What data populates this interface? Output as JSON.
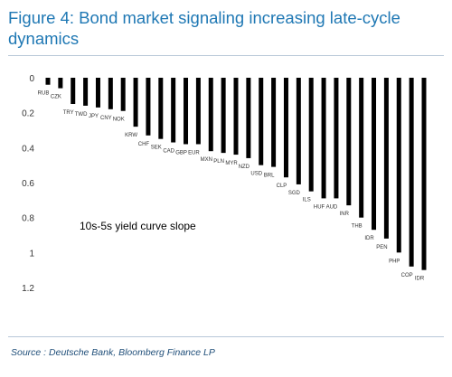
{
  "title": "Figure 4: Bond market signaling increasing late-cycle dynamics",
  "source": "Source : Deutsche Bank, Bloomberg Finance LP",
  "chart_data": {
    "type": "bar",
    "orientation": "vertical",
    "y_inverted": true,
    "title": "Figure 4: Bond market signaling increasing late-cycle dynamics",
    "annotation": "10s-5s yield curve slope",
    "ylim": [
      0,
      1.2
    ],
    "yticks": [
      "0",
      "0.2",
      "0.4",
      "0.6",
      "0.8",
      "1",
      "1.2"
    ],
    "grid": false,
    "legend": "none",
    "bar_color": "#000000",
    "categories": [
      "RUB",
      "CZK",
      "TRY",
      "TWD",
      "JPY",
      "CNY",
      "NOK",
      "KRW",
      "CHF",
      "SEK",
      "CAD",
      "GBP",
      "EUR",
      "MXN",
      "PLN",
      "MYR",
      "NZD",
      "USD",
      "BRL",
      "CLP",
      "SGD",
      "ILS",
      "HUF",
      "AUD",
      "INR",
      "THB",
      "IDR",
      "PEN",
      "PHP",
      "COP",
      "IDR"
    ],
    "values": [
      0.04,
      0.06,
      0.15,
      0.16,
      0.17,
      0.18,
      0.19,
      0.28,
      0.33,
      0.35,
      0.37,
      0.38,
      0.38,
      0.42,
      0.43,
      0.44,
      0.46,
      0.5,
      0.51,
      0.57,
      0.61,
      0.65,
      0.69,
      0.69,
      0.73,
      0.8,
      0.87,
      0.92,
      1.0,
      1.08,
      1.1
    ]
  }
}
